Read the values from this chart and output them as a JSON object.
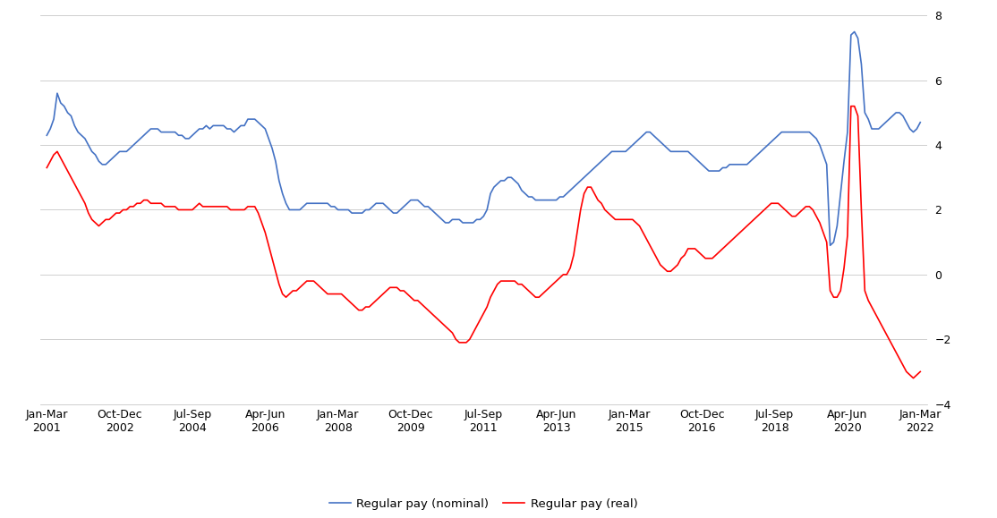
{
  "title": "",
  "xlabel": "",
  "ylabel": "",
  "ylim": [
    -4,
    8
  ],
  "yticks": [
    -4,
    -2,
    0,
    2,
    4,
    6,
    8
  ],
  "background_color": "#ffffff",
  "nominal_color": "#4472C4",
  "real_color": "#FF0000",
  "nominal_label": "Regular pay (nominal)",
  "real_label": "Regular pay (real)",
  "x_tick_labels": [
    "Jan-Mar\n2001",
    "Oct-Dec\n2002",
    "Jul-Sep\n2004",
    "Apr-Jun\n2006",
    "Jan-Mar\n2008",
    "Oct-Dec\n2009",
    "Jul-Sep\n2011",
    "Apr-Jun\n2013",
    "Jan-Mar\n2015",
    "Oct-Dec\n2016",
    "Jul-Sep\n2018",
    "Apr-Jun\n2020",
    "Jan-Mar\n2022"
  ],
  "nominal": [
    4.3,
    4.5,
    4.8,
    5.6,
    5.3,
    5.2,
    5.0,
    4.9,
    4.6,
    4.4,
    4.3,
    4.2,
    4.0,
    3.8,
    3.7,
    3.5,
    3.4,
    3.4,
    3.5,
    3.6,
    3.7,
    3.8,
    3.8,
    3.8,
    3.9,
    4.0,
    4.1,
    4.2,
    4.3,
    4.4,
    4.5,
    4.5,
    4.5,
    4.4,
    4.4,
    4.4,
    4.4,
    4.4,
    4.3,
    4.3,
    4.2,
    4.2,
    4.3,
    4.4,
    4.5,
    4.5,
    4.6,
    4.5,
    4.6,
    4.6,
    4.6,
    4.6,
    4.5,
    4.5,
    4.4,
    4.5,
    4.6,
    4.6,
    4.8,
    4.8,
    4.8,
    4.7,
    4.6,
    4.5,
    4.2,
    3.9,
    3.5,
    2.9,
    2.5,
    2.2,
    2.0,
    2.0,
    2.0,
    2.0,
    2.1,
    2.2,
    2.2,
    2.2,
    2.2,
    2.2,
    2.2,
    2.2,
    2.1,
    2.1,
    2.0,
    2.0,
    2.0,
    2.0,
    1.9,
    1.9,
    1.9,
    1.9,
    2.0,
    2.0,
    2.1,
    2.2,
    2.2,
    2.2,
    2.1,
    2.0,
    1.9,
    1.9,
    2.0,
    2.1,
    2.2,
    2.3,
    2.3,
    2.3,
    2.2,
    2.1,
    2.1,
    2.0,
    1.9,
    1.8,
    1.7,
    1.6,
    1.6,
    1.7,
    1.7,
    1.7,
    1.6,
    1.6,
    1.6,
    1.6,
    1.7,
    1.7,
    1.8,
    2.0,
    2.5,
    2.7,
    2.8,
    2.9,
    2.9,
    3.0,
    3.0,
    2.9,
    2.8,
    2.6,
    2.5,
    2.4,
    2.4,
    2.3,
    2.3,
    2.3,
    2.3,
    2.3,
    2.3,
    2.3,
    2.4,
    2.4,
    2.5,
    2.6,
    2.7,
    2.8,
    2.9,
    3.0,
    3.1,
    3.2,
    3.3,
    3.4,
    3.5,
    3.6,
    3.7,
    3.8,
    3.8,
    3.8,
    3.8,
    3.8,
    3.9,
    4.0,
    4.1,
    4.2,
    4.3,
    4.4,
    4.4,
    4.3,
    4.2,
    4.1,
    4.0,
    3.9,
    3.8,
    3.8,
    3.8,
    3.8,
    3.8,
    3.8,
    3.7,
    3.6,
    3.5,
    3.4,
    3.3,
    3.2,
    3.2,
    3.2,
    3.2,
    3.3,
    3.3,
    3.4,
    3.4,
    3.4,
    3.4,
    3.4,
    3.4,
    3.5,
    3.6,
    3.7,
    3.8,
    3.9,
    4.0,
    4.1,
    4.2,
    4.3,
    4.4,
    4.4,
    4.4,
    4.4,
    4.4,
    4.4,
    4.4,
    4.4,
    4.4,
    4.3,
    4.2,
    4.0,
    3.7,
    3.4,
    0.9,
    1.0,
    1.5,
    2.5,
    3.5,
    4.4,
    7.4,
    7.5,
    7.3,
    6.5,
    5.0,
    4.8,
    4.5,
    4.5,
    4.5,
    4.6,
    4.7,
    4.8,
    4.9,
    5.0,
    5.0,
    4.9,
    4.7,
    4.5,
    4.4,
    4.5,
    4.7
  ],
  "real": [
    3.3,
    3.5,
    3.7,
    3.8,
    3.6,
    3.4,
    3.2,
    3.0,
    2.8,
    2.6,
    2.4,
    2.2,
    1.9,
    1.7,
    1.6,
    1.5,
    1.6,
    1.7,
    1.7,
    1.8,
    1.9,
    1.9,
    2.0,
    2.0,
    2.1,
    2.1,
    2.2,
    2.2,
    2.3,
    2.3,
    2.2,
    2.2,
    2.2,
    2.2,
    2.1,
    2.1,
    2.1,
    2.1,
    2.0,
    2.0,
    2.0,
    2.0,
    2.0,
    2.1,
    2.2,
    2.1,
    2.1,
    2.1,
    2.1,
    2.1,
    2.1,
    2.1,
    2.1,
    2.0,
    2.0,
    2.0,
    2.0,
    2.0,
    2.1,
    2.1,
    2.1,
    1.9,
    1.6,
    1.3,
    0.9,
    0.5,
    0.1,
    -0.3,
    -0.6,
    -0.7,
    -0.6,
    -0.5,
    -0.5,
    -0.4,
    -0.3,
    -0.2,
    -0.2,
    -0.2,
    -0.3,
    -0.4,
    -0.5,
    -0.6,
    -0.6,
    -0.6,
    -0.6,
    -0.6,
    -0.7,
    -0.8,
    -0.9,
    -1.0,
    -1.1,
    -1.1,
    -1.0,
    -1.0,
    -0.9,
    -0.8,
    -0.7,
    -0.6,
    -0.5,
    -0.4,
    -0.4,
    -0.4,
    -0.5,
    -0.5,
    -0.6,
    -0.7,
    -0.8,
    -0.8,
    -0.9,
    -1.0,
    -1.1,
    -1.2,
    -1.3,
    -1.4,
    -1.5,
    -1.6,
    -1.7,
    -1.8,
    -2.0,
    -2.1,
    -2.1,
    -2.1,
    -2.0,
    -1.8,
    -1.6,
    -1.4,
    -1.2,
    -1.0,
    -0.7,
    -0.5,
    -0.3,
    -0.2,
    -0.2,
    -0.2,
    -0.2,
    -0.2,
    -0.3,
    -0.3,
    -0.4,
    -0.5,
    -0.6,
    -0.7,
    -0.7,
    -0.6,
    -0.5,
    -0.4,
    -0.3,
    -0.2,
    -0.1,
    0.0,
    0.0,
    0.2,
    0.6,
    1.3,
    2.0,
    2.5,
    2.7,
    2.7,
    2.5,
    2.3,
    2.2,
    2.0,
    1.9,
    1.8,
    1.7,
    1.7,
    1.7,
    1.7,
    1.7,
    1.7,
    1.6,
    1.5,
    1.3,
    1.1,
    0.9,
    0.7,
    0.5,
    0.3,
    0.2,
    0.1,
    0.1,
    0.2,
    0.3,
    0.5,
    0.6,
    0.8,
    0.8,
    0.8,
    0.7,
    0.6,
    0.5,
    0.5,
    0.5,
    0.6,
    0.7,
    0.8,
    0.9,
    1.0,
    1.1,
    1.2,
    1.3,
    1.4,
    1.5,
    1.6,
    1.7,
    1.8,
    1.9,
    2.0,
    2.1,
    2.2,
    2.2,
    2.2,
    2.1,
    2.0,
    1.9,
    1.8,
    1.8,
    1.9,
    2.0,
    2.1,
    2.1,
    2.0,
    1.8,
    1.6,
    1.3,
    1.0,
    -0.5,
    -0.7,
    -0.7,
    -0.5,
    0.2,
    1.2,
    5.2,
    5.2,
    4.9,
    2.0,
    -0.5,
    -0.8,
    -1.0,
    -1.2,
    -1.4,
    -1.6,
    -1.8,
    -2.0,
    -2.2,
    -2.4,
    -2.6,
    -2.8,
    -3.0,
    -3.1,
    -3.2,
    -3.1,
    -3.0
  ]
}
